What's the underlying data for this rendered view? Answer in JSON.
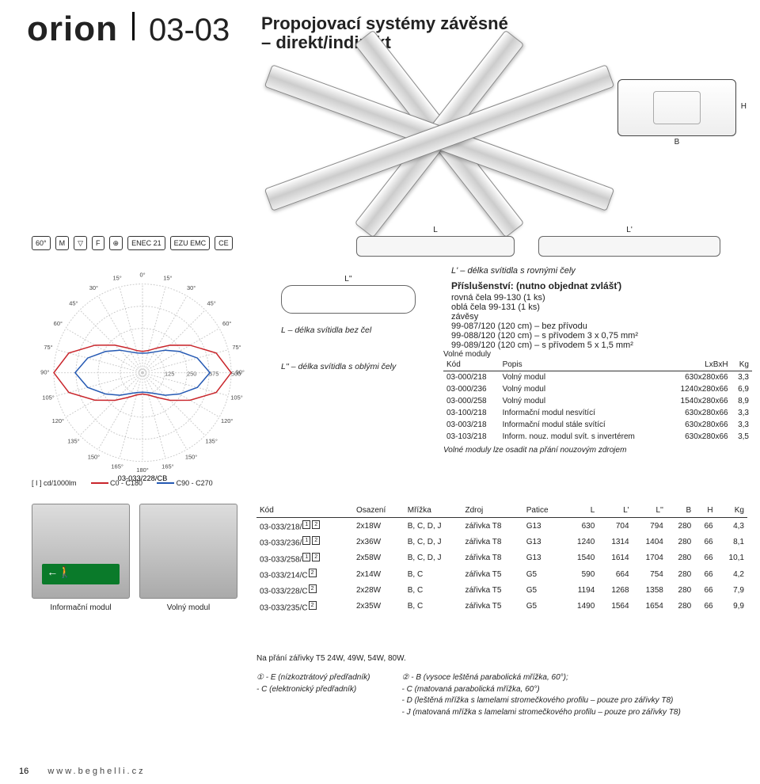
{
  "header": {
    "brand": "orion",
    "code": "03-03"
  },
  "title": {
    "l1": "Propojovací systémy závěsné",
    "l2": "– direkt/indirekt"
  },
  "sideSchematic": {
    "H": "H",
    "B": "B"
  },
  "certRow": [
    "60°",
    "M",
    "▽",
    "F",
    "⊕",
    "ENEC 21",
    "EZU EMC",
    "CE"
  ],
  "bars": {
    "L": "L",
    "Lp": "L'",
    "Lpp": "L''"
  },
  "legend": {
    "a": "L – délka svítidla bez čel",
    "b": "L'' – délka svítidla s oblými čely",
    "c": "L' – délka svítidla s rovnými čely"
  },
  "accessories": {
    "heading": "Příslušenství: (nutno objednat zvlášť)",
    "items": [
      "rovná čela 99-130 (1 ks)",
      "oblá čela 99-131 (1 ks)",
      "závěsy",
      "99-087/120 (120 cm) – bez přívodu",
      "99-088/120 (120 cm) – s přívodem 3 x 0,75 mm²",
      "99-089/120 (120 cm) – s přívodem 5 x 1,5 mm²"
    ]
  },
  "polar": {
    "degrees": [
      "0°",
      "15°",
      "30°",
      "45°",
      "60°",
      "75°",
      "90°",
      "105°",
      "120°",
      "135°",
      "150°",
      "165°",
      "180°"
    ],
    "rings": [
      125,
      250,
      375,
      500
    ],
    "model": "03-033/228/CB",
    "unit": "[ I ] cd/1000lm",
    "series": [
      {
        "name": "C0 - C180",
        "color": "#c9252b"
      },
      {
        "name": "C90 - C270",
        "color": "#2559b3"
      }
    ],
    "curve_red": [
      [
        0,
        120
      ],
      [
        15,
        130
      ],
      [
        30,
        160
      ],
      [
        45,
        220
      ],
      [
        60,
        310
      ],
      [
        75,
        430
      ],
      [
        90,
        500
      ],
      [
        105,
        430
      ],
      [
        120,
        310
      ],
      [
        135,
        220
      ],
      [
        150,
        160
      ],
      [
        165,
        130
      ],
      [
        180,
        120
      ]
    ],
    "curve_blue": [
      [
        0,
        110
      ],
      [
        15,
        115
      ],
      [
        30,
        135
      ],
      [
        45,
        180
      ],
      [
        60,
        240
      ],
      [
        75,
        320
      ],
      [
        90,
        380
      ],
      [
        105,
        320
      ],
      [
        120,
        240
      ],
      [
        135,
        180
      ],
      [
        150,
        135
      ],
      [
        165,
        115
      ],
      [
        180,
        110
      ]
    ],
    "background": "#ffffff",
    "grid": "#c8c8c8"
  },
  "volMod": {
    "caption": "Volné moduly",
    "note": "Volné moduly lze osadit na přání nouzovým zdrojem",
    "cols": [
      "Kód",
      "Popis",
      "LxBxH",
      "Kg"
    ],
    "rows": [
      [
        "03-000/218",
        "Volný modul",
        "630x280x66",
        "3,3"
      ],
      [
        "03-000/236",
        "Volný modul",
        "1240x280x66",
        "6,9"
      ],
      [
        "03-000/258",
        "Volný modul",
        "1540x280x66",
        "8,9"
      ],
      [
        "03-100/218",
        "Informační modul nesvítící",
        "630x280x66",
        "3,3"
      ],
      [
        "03-003/218",
        "Informační modul stále svítící",
        "630x280x66",
        "3,3"
      ],
      [
        "03-103/218",
        "Inform. nouz. modul svít. s invertérem",
        "630x280x66",
        "3,5"
      ]
    ]
  },
  "mainTable": {
    "cols": [
      "Kód",
      "Osazení",
      "Mřížka",
      "Zdroj",
      "Patice",
      "L",
      "L'",
      "L''",
      "B",
      "H",
      "Kg"
    ],
    "rows": [
      [
        "03-033/218/..",
        "2x18W",
        "B, C, D, J",
        "zářivka T8",
        "G13",
        "630",
        "704",
        "794",
        "280",
        "66",
        "4,3"
      ],
      [
        "03-033/236/..",
        "2x36W",
        "B, C, D, J",
        "zářivka T8",
        "G13",
        "1240",
        "1314",
        "1404",
        "280",
        "66",
        "8,1"
      ],
      [
        "03-033/258/..",
        "2x58W",
        "B, C, D, J",
        "zářivka T8",
        "G13",
        "1540",
        "1614",
        "1704",
        "280",
        "66",
        "10,1"
      ],
      [
        "03-033/214/C..",
        "2x14W",
        "B, C",
        "zářivka T5",
        "G5",
        "590",
        "664",
        "754",
        "280",
        "66",
        "4,2"
      ],
      [
        "03-033/228/C..",
        "2x28W",
        "B, C",
        "zářivka T5",
        "G5",
        "1194",
        "1268",
        "1358",
        "280",
        "66",
        "7,9"
      ],
      [
        "03-033/235/C..",
        "2x35W",
        "B, C",
        "zářivka T5",
        "G5",
        "1490",
        "1564",
        "1654",
        "280",
        "66",
        "9,9"
      ]
    ],
    "supMap": {
      "03-033/218/..": "12",
      "03-033/236/..": "12",
      "03-033/258/..": "12",
      "03-033/214/C..": "2",
      "03-033/228/C..": "2",
      "03-033/235/C..": "2"
    },
    "note": "Na přání zářivky T5 24W, 49W, 54W, 80W."
  },
  "footnotes": {
    "left": [
      "① - E (nízkoztrátový předřadník)",
      "    - C (elektronický předřadník)"
    ],
    "right": [
      "② - B (vysoce leštěná parabolická mřížka, 60°);",
      "    - C (matovaná parabolická mřížka, 60°)",
      "    - D (leštěná mřížka s lamelami stromečkového profilu – pouze pro zářivky T8)",
      "    - J (matovaná mřížka s lamelami stromečkového profilu – pouze pro zářivky T8)"
    ]
  },
  "panels": {
    "a": "Informační modul",
    "b": "Volný modul"
  },
  "footer": {
    "page": "16",
    "url": "www.beghelli.cz"
  }
}
